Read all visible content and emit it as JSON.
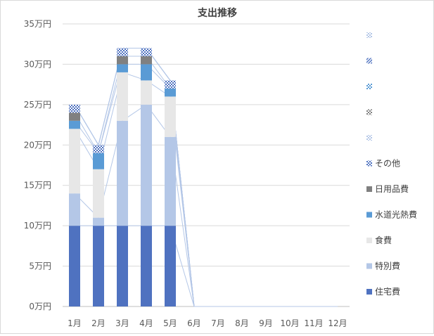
{
  "chart_data": {
    "type": "bar",
    "title": "支出推移",
    "categories": [
      "1月",
      "2月",
      "3月",
      "4月",
      "5月",
      "6月",
      "7月",
      "8月",
      "9月",
      "10月",
      "11月",
      "12月"
    ],
    "y_ticks": [
      "0万円",
      "5万円",
      "10万円",
      "15万円",
      "20万円",
      "25万円",
      "30万円",
      "35万円"
    ],
    "ylim": [
      0,
      35
    ],
    "grid": true,
    "legend_position": "right",
    "series": [
      {
        "name": "住宅費",
        "color": "#4f72c0",
        "pattern": "solid",
        "values": [
          10,
          10,
          10,
          10,
          10,
          0,
          0,
          0,
          0,
          0,
          0,
          0
        ]
      },
      {
        "name": "特別費",
        "color": "#b4c7e7",
        "pattern": "solid",
        "values": [
          4,
          1,
          13,
          15,
          11,
          0,
          0,
          0,
          0,
          0,
          0,
          0
        ]
      },
      {
        "name": "食費",
        "color": "#e7e7e7",
        "pattern": "solid",
        "values": [
          8,
          6,
          6,
          3,
          5,
          0,
          0,
          0,
          0,
          0,
          0,
          0
        ]
      },
      {
        "name": "水道光熱費",
        "color": "#5a9bd5",
        "pattern": "solid",
        "values": [
          1,
          2,
          1,
          2,
          1,
          0,
          0,
          0,
          0,
          0,
          0,
          0
        ]
      },
      {
        "name": "日用品費",
        "color": "#808080",
        "pattern": "solid",
        "values": [
          1,
          0,
          1,
          1,
          0,
          0,
          0,
          0,
          0,
          0,
          0,
          0
        ]
      },
      {
        "name": "その他",
        "color": "#4f72c0",
        "pattern": "check",
        "values": [
          1,
          1,
          1,
          1,
          1,
          0,
          0,
          0,
          0,
          0,
          0,
          0
        ]
      },
      {
        "name": "",
        "color": "#b4c7e7",
        "pattern": "check",
        "values": [
          0,
          0,
          0,
          0,
          0,
          0,
          0,
          0,
          0,
          0,
          0,
          0
        ]
      },
      {
        "name": "",
        "color": "#808080",
        "pattern": "check",
        "values": [
          0,
          0,
          0,
          0,
          0,
          0,
          0,
          0,
          0,
          0,
          0,
          0
        ]
      },
      {
        "name": "",
        "color": "#5a9bd5",
        "pattern": "check",
        "values": [
          0,
          0,
          0,
          0,
          0,
          0,
          0,
          0,
          0,
          0,
          0,
          0
        ]
      },
      {
        "name": "",
        "color": "#4f72c0",
        "pattern": "diag",
        "values": [
          0,
          0,
          0,
          0,
          0,
          0,
          0,
          0,
          0,
          0,
          0,
          0
        ]
      },
      {
        "name": "",
        "color": "#b4c7e7",
        "pattern": "check",
        "values": [
          0,
          0,
          0,
          0,
          0,
          0,
          0,
          0,
          0,
          0,
          0,
          0
        ]
      }
    ]
  }
}
